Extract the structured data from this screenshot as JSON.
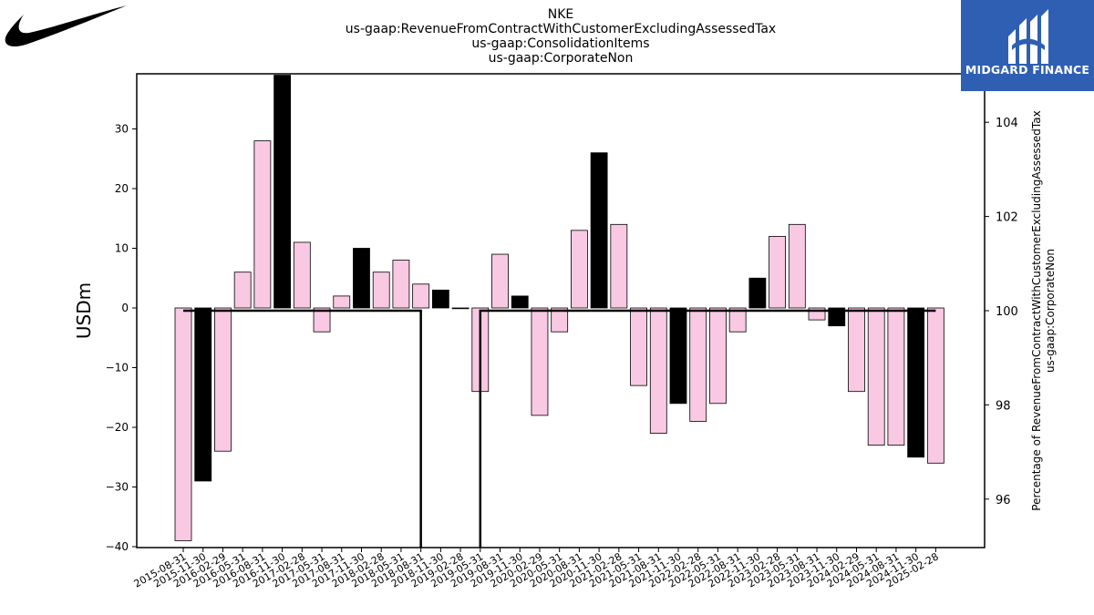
{
  "header": {
    "ticker": "NKE",
    "subtitle_1": "us-gaap:RevenueFromContractWithCustomerExcludingAssessedTax",
    "subtitle_2": "us-gaap:ConsolidationItems",
    "subtitle_3": "us-gaap:CorporateNon"
  },
  "brand": {
    "name": "MIDGARD FINANCE",
    "logo_icon": "midgard-logo-icon",
    "left_logo_icon": "nike-swoosh-icon"
  },
  "colors": {
    "bar_pink": "#f9c9e3",
    "bar_black": "#000000",
    "line": "#000000",
    "brand_bg": "#2f5fb3"
  },
  "chart_data": {
    "type": "bar",
    "categories": [
      "2015-08-31",
      "2015-11-30",
      "2016-02-29",
      "2016-05-31",
      "2016-08-31",
      "2016-11-30",
      "2017-02-28",
      "2017-05-31",
      "2017-08-31",
      "2017-11-30",
      "2018-02-28",
      "2018-05-31",
      "2018-08-31",
      "2018-11-30",
      "2019-02-28",
      "2019-05-31",
      "2019-08-31",
      "2019-11-30",
      "2020-02-29",
      "2020-05-31",
      "2020-08-31",
      "2020-11-30",
      "2021-02-28",
      "2021-05-31",
      "2021-08-31",
      "2021-11-30",
      "2022-02-28",
      "2022-05-31",
      "2022-08-31",
      "2022-11-30",
      "2023-02-28",
      "2023-05-31",
      "2023-08-31",
      "2023-11-30",
      "2024-02-29",
      "2024-05-31",
      "2024-08-31",
      "2024-11-30",
      "2025-02-28"
    ],
    "values": [
      -39,
      -29,
      -24,
      6,
      28,
      39,
      11,
      -4,
      2,
      10,
      6,
      8,
      4,
      3,
      0,
      -14,
      9,
      2,
      -18,
      -4,
      13,
      26,
      14,
      -13,
      -21,
      -16,
      -19,
      -16,
      -4,
      5,
      12,
      14,
      -2,
      -3,
      -14,
      -23,
      -23,
      -25,
      -26
    ],
    "bar_colors": [
      "pink",
      "black",
      "pink",
      "pink",
      "pink",
      "black",
      "pink",
      "pink",
      "pink",
      "black",
      "pink",
      "pink",
      "pink",
      "black",
      "pink",
      "pink",
      "pink",
      "black",
      "pink",
      "pink",
      "pink",
      "black",
      "pink",
      "pink",
      "pink",
      "black",
      "pink",
      "pink",
      "pink",
      "black",
      "pink",
      "pink",
      "pink",
      "black",
      "pink",
      "pink",
      "pink",
      "black",
      "pink"
    ],
    "percentage_series": [
      100,
      100,
      100,
      100,
      100,
      100,
      100,
      100,
      100,
      100,
      100,
      100,
      100,
      null,
      null,
      100,
      100,
      100,
      100,
      100,
      100,
      100,
      100,
      100,
      100,
      100,
      100,
      100,
      100,
      100,
      100,
      100,
      100,
      100,
      100,
      100,
      100,
      100,
      100
    ],
    "ylabel": "USDm",
    "ylabel_right_1": "Percentage of RevenueFromContractWithCustomerExcludingAssessedTax",
    "ylabel_right_2": "us-gaap:CorporateNon",
    "ylim": [
      -40,
      39
    ],
    "ylim_right": [
      95,
      105.5
    ],
    "yticks": [
      "30",
      "20",
      "10",
      "0",
      "−10",
      "−20",
      "−30",
      "−40"
    ],
    "yticks_right": [
      "104",
      "102",
      "100",
      "98",
      "96"
    ]
  }
}
